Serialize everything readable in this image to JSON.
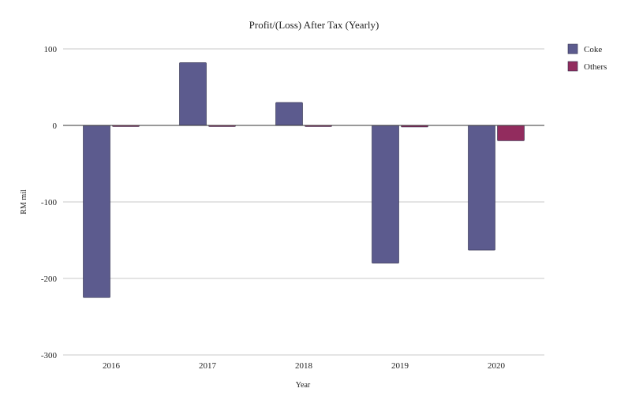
{
  "chart_data": {
    "type": "bar",
    "title": "Profit/(Loss) After Tax (Yearly)",
    "xlabel": "Year",
    "ylabel": "RM mil",
    "categories": [
      "2016",
      "2017",
      "2018",
      "2019",
      "2020"
    ],
    "series": [
      {
        "name": "Coke",
        "color": "#5c5b8e",
        "values": [
          -225,
          82,
          30,
          -180,
          -163
        ]
      },
      {
        "name": "Others",
        "color": "#922c5e",
        "values": [
          -1,
          -1,
          -1,
          -2,
          -20
        ]
      }
    ],
    "ylim": [
      -300,
      100
    ],
    "yticks": [
      100,
      0,
      -100,
      -200,
      -300
    ],
    "ytick_labels": [
      "100",
      "0",
      "-100",
      "-200",
      "-300"
    ],
    "grid": true,
    "legend_position": "right"
  }
}
